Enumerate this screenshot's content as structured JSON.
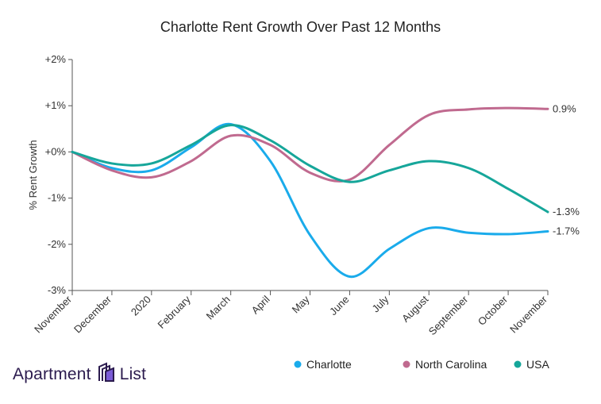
{
  "chart_data": {
    "type": "line",
    "title": "Charlotte Rent Growth Over Past 12 Months",
    "ylabel": "% Rent Growth",
    "xlabel": "",
    "categories": [
      "November",
      "December",
      "2020",
      "February",
      "March",
      "April",
      "May",
      "June",
      "July",
      "August",
      "September",
      "October",
      "November"
    ],
    "ylim": [
      -3,
      2
    ],
    "yticks": [
      2,
      1,
      0,
      -1,
      -2,
      -3
    ],
    "ytick_labels": [
      "+2%",
      "+1%",
      "+0%",
      "-1%",
      "-2%",
      "-3%"
    ],
    "grid": false,
    "legend_position": "bottom-right",
    "series": [
      {
        "name": "Charlotte",
        "color": "#1aabeb",
        "values": [
          0.0,
          -0.35,
          -0.4,
          0.1,
          0.6,
          -0.2,
          -1.8,
          -2.7,
          -2.1,
          -1.65,
          -1.75,
          -1.78,
          -1.72
        ],
        "end_label": "-1.7%"
      },
      {
        "name": "North Carolina",
        "color": "#c06a8f",
        "values": [
          0.0,
          -0.4,
          -0.55,
          -0.2,
          0.35,
          0.15,
          -0.45,
          -0.6,
          0.15,
          0.8,
          0.92,
          0.95,
          0.93
        ],
        "end_label": "0.9%"
      },
      {
        "name": "USA",
        "color": "#16a69a",
        "values": [
          0.0,
          -0.25,
          -0.25,
          0.15,
          0.58,
          0.25,
          -0.3,
          -0.65,
          -0.4,
          -0.2,
          -0.35,
          -0.8,
          -1.3
        ],
        "end_label": "-1.3%"
      }
    ]
  },
  "brand": {
    "word1": "Apartment",
    "word2": "List",
    "logo_icon": "apartment-list-logo-icon",
    "color": "#2b1b4e"
  }
}
